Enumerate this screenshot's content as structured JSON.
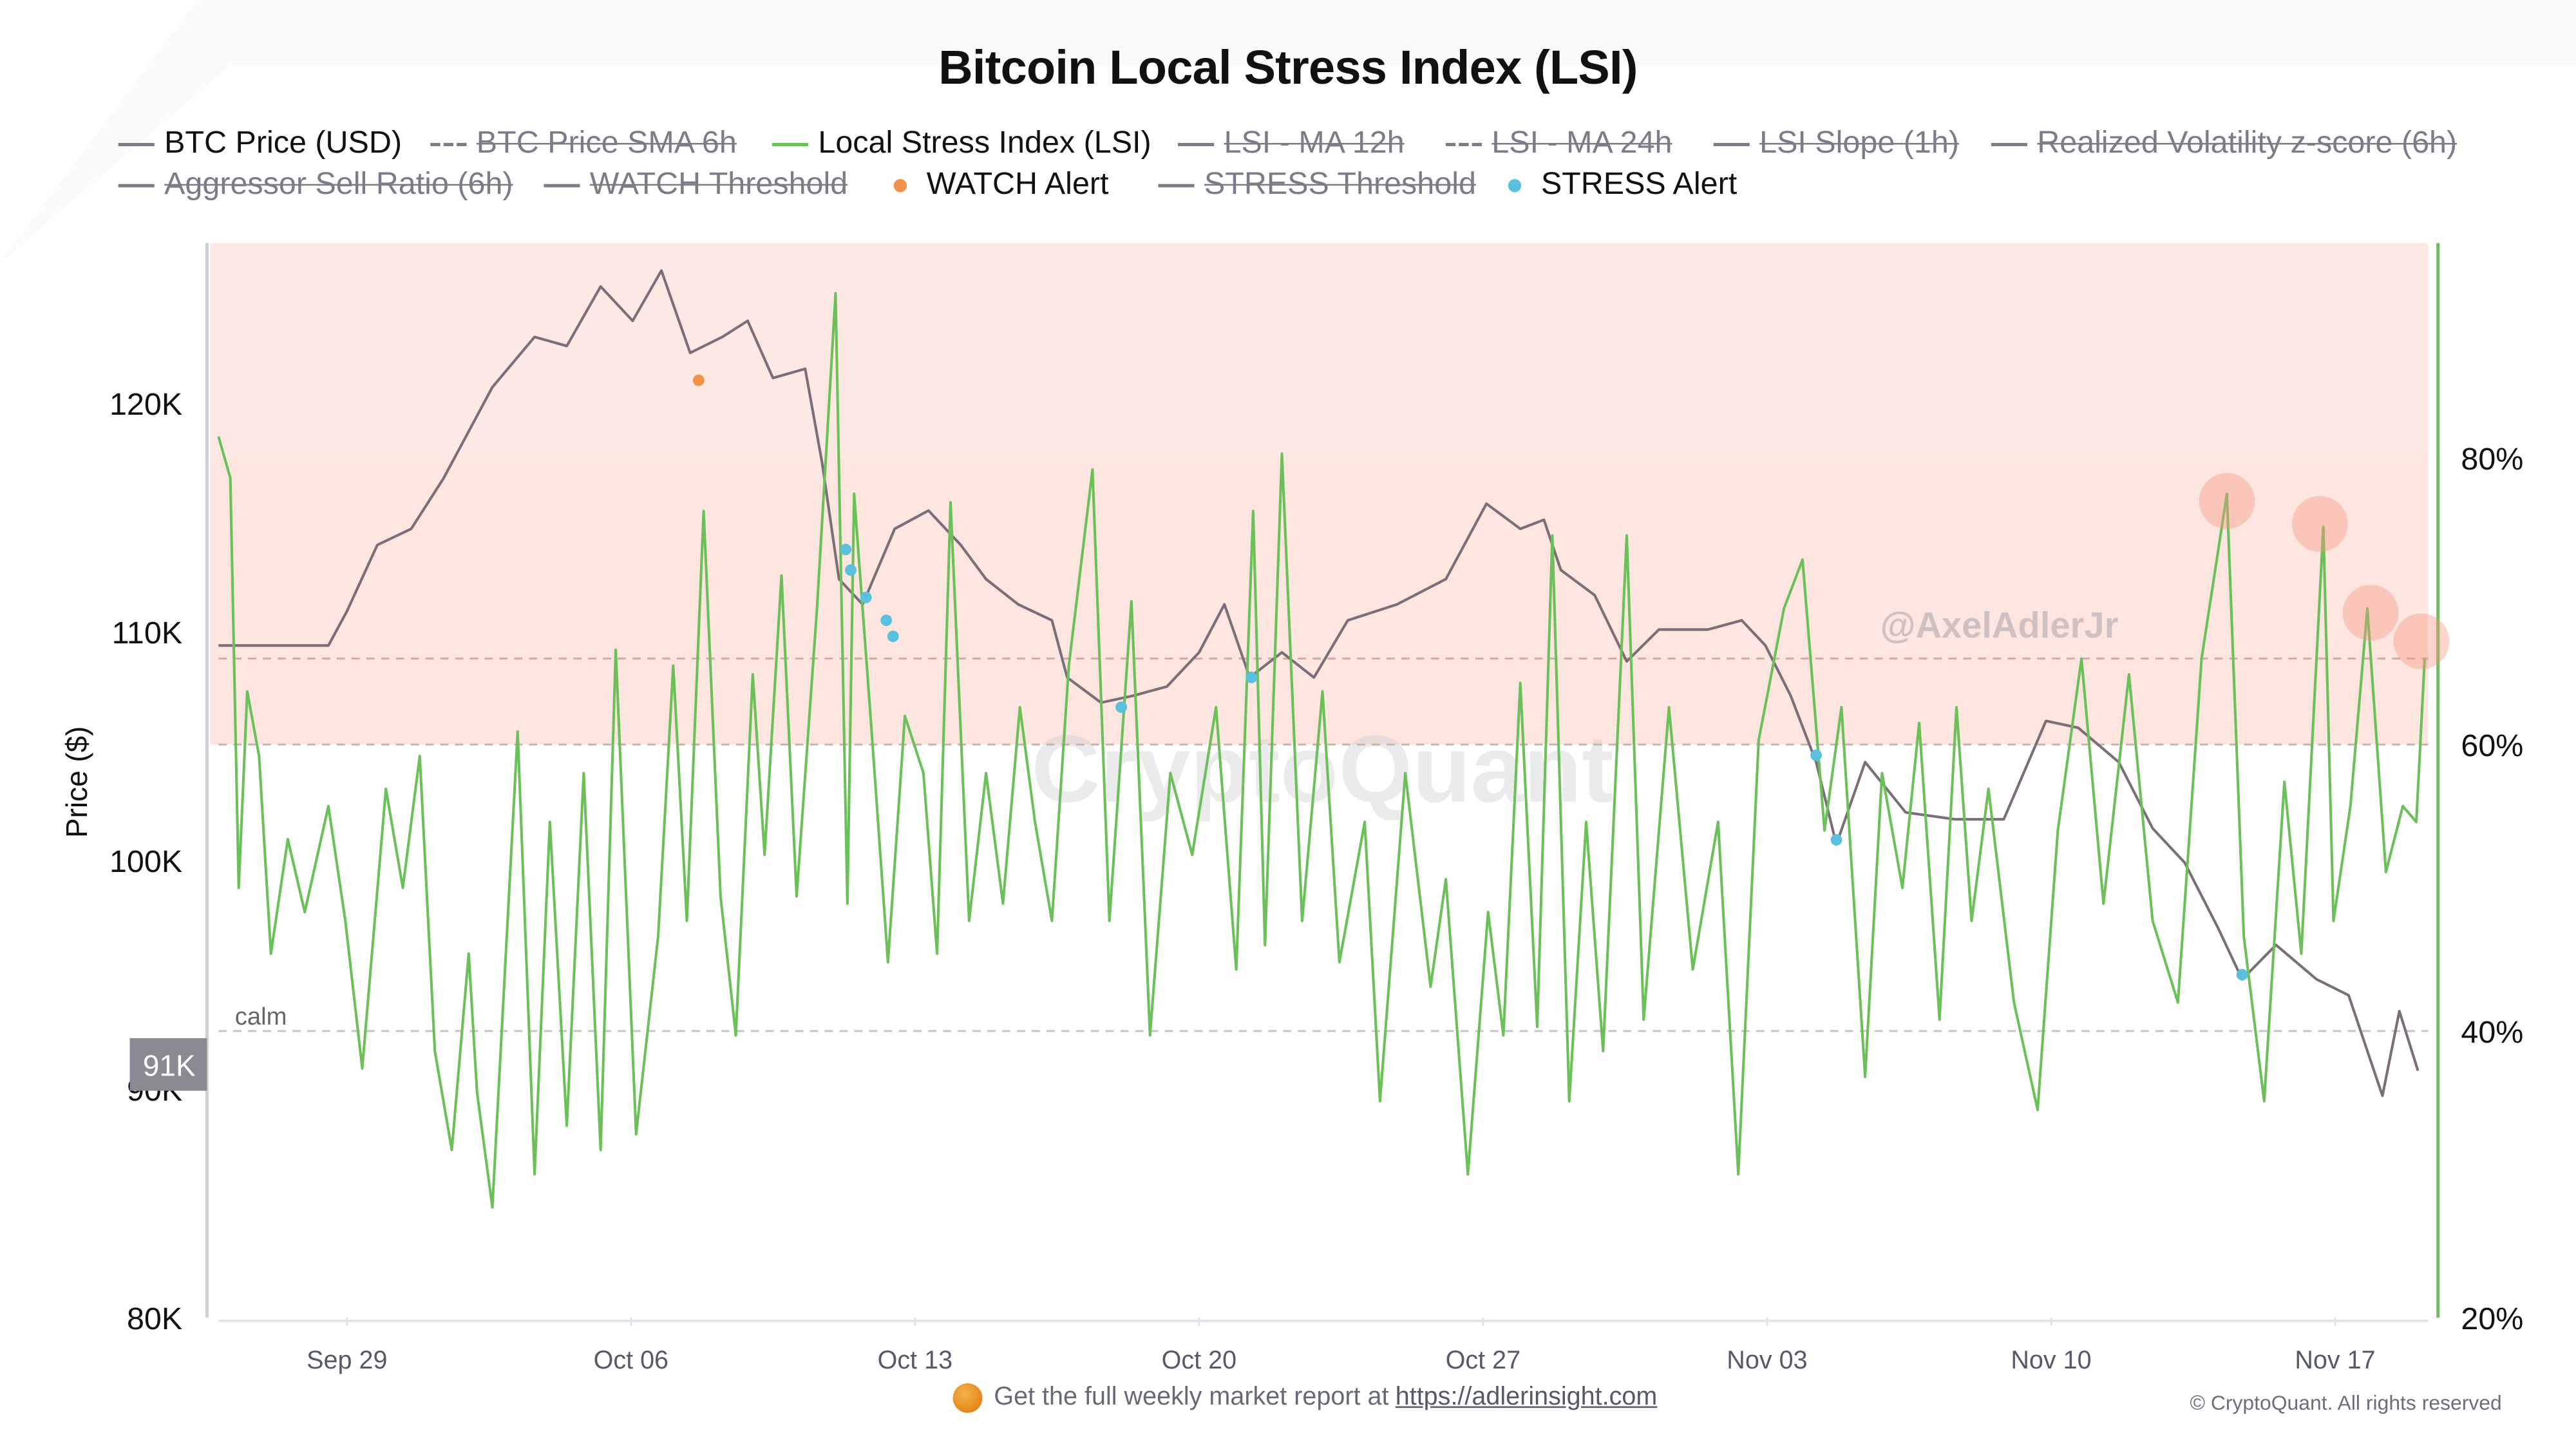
{
  "title": "Bitcoin Local Stress Index (LSI)",
  "legend": [
    {
      "label": "BTC Price (USD)",
      "style": "solid",
      "color": "#7c7c86",
      "active": true
    },
    {
      "label": "BTC Price SMA 6h",
      "style": "dashed",
      "color": "#7c7c86",
      "active": false
    },
    {
      "label": "Local Stress Index (LSI)",
      "style": "solid",
      "color": "#6cc05a",
      "active": true
    },
    {
      "label": "LSI - MA 12h",
      "style": "solid",
      "color": "#7c7c86",
      "active": false
    },
    {
      "label": "LSI - MA 24h",
      "style": "dashed",
      "color": "#7c7c86",
      "active": false
    },
    {
      "label": "LSI Slope (1h)",
      "style": "solid",
      "color": "#7c7c86",
      "active": false
    },
    {
      "label": "Realized Volatility z-score (6h)",
      "style": "solid",
      "color": "#7c7c86",
      "active": false
    },
    {
      "label": "Aggressor Sell Ratio (6h)",
      "style": "solid",
      "color": "#7c7c86",
      "active": false
    },
    {
      "label": "WATCH Threshold",
      "style": "solid",
      "color": "#7c7c86",
      "active": false
    },
    {
      "label": "WATCH Alert",
      "style": "dot",
      "color": "#f0924a",
      "active": true
    },
    {
      "label": "STRESS Threshold",
      "style": "solid",
      "color": "#7c7c86",
      "active": false
    },
    {
      "label": "STRESS Alert",
      "style": "dot",
      "color": "#5bc0de",
      "active": true
    }
  ],
  "watermarks": {
    "brand": "CryptoQuant",
    "author": "@AxelAdlerJr"
  },
  "footer": {
    "text": "Get the full weekly market report at",
    "link": "https://adlerinsight.com",
    "copyright": "© CryptoQuant. All rights reserved"
  },
  "chart_data": {
    "type": "line",
    "xlabel": "",
    "x_ticks": [
      "Sep 29",
      "Oct 06",
      "Oct 13",
      "Oct 20",
      "Oct 27",
      "Nov 03",
      "Nov 10",
      "Nov 17"
    ],
    "x_tick_dates": [
      "09-29 00:00",
      "10-06 00:00",
      "10-13 00:00",
      "10-20 00:00",
      "10-27 00:00",
      "11-03 00:00",
      "11-10 00:00",
      "11-17 00:00"
    ],
    "x_range": [
      "09-25 20:00",
      "11-19 07:00"
    ],
    "left_axis": {
      "label": "Price ($)",
      "range": [
        80000,
        127000
      ],
      "ticks": [
        80000,
        90000,
        100000,
        110000,
        120000
      ],
      "tick_labels": [
        "80K",
        "90K",
        "100K",
        "110K",
        "120K"
      ]
    },
    "right_axis": {
      "range": [
        20,
        95
      ],
      "ticks": [
        20,
        40,
        60,
        80
      ],
      "tick_labels": [
        "20%",
        "40%",
        "60%",
        "80%"
      ]
    },
    "current_price_label": "91K",
    "current_price": 91000,
    "zones": [
      {
        "from": 60,
        "to": 95,
        "axis": "right",
        "color": "#fde6df"
      }
    ],
    "thresholds": [
      {
        "value": 66,
        "axis": "right",
        "style": "dashed",
        "color": "#d6a9a6"
      },
      {
        "value": 60,
        "axis": "right",
        "style": "dashed",
        "color": "#c9b2b2"
      },
      {
        "value": 40,
        "axis": "right",
        "style": "dashed",
        "color": "#c4c4c8",
        "label": "calm"
      }
    ],
    "series": [
      {
        "name": "BTC Price (USD)",
        "axis": "left",
        "color": "#7a6e78",
        "points": [
          [
            "09-25 20:00",
            109400
          ],
          [
            "09-28 13:00",
            109400
          ],
          [
            "09-29 00:00",
            110900
          ],
          [
            "09-29 18:00",
            113800
          ],
          [
            "09-30 14:00",
            114500
          ],
          [
            "10-01 09:00",
            116700
          ],
          [
            "10-02 14:00",
            120700
          ],
          [
            "10-03 15:00",
            122900
          ],
          [
            "10-04 10:00",
            122500
          ],
          [
            "10-05 06:00",
            125100
          ],
          [
            "10-06 01:00",
            123600
          ],
          [
            "10-06 18:00",
            125800
          ],
          [
            "10-07 11:00",
            122200
          ],
          [
            "10-08 06:00",
            122900
          ],
          [
            "10-08 21:00",
            123600
          ],
          [
            "10-09 12:00",
            121100
          ],
          [
            "10-10 07:00",
            121500
          ],
          [
            "10-10 17:00",
            117400
          ],
          [
            "10-11 03:00",
            112300
          ],
          [
            "10-11 17:00",
            111200
          ],
          [
            "10-12 12:00",
            114500
          ],
          [
            "10-13 08:00",
            115300
          ],
          [
            "10-14 03:00",
            113800
          ],
          [
            "10-14 18:00",
            112300
          ],
          [
            "10-15 13:00",
            111200
          ],
          [
            "10-16 09:00",
            110500
          ],
          [
            "10-16 18:00",
            108000
          ],
          [
            "10-17 14:00",
            106900
          ],
          [
            "10-18 09:00",
            107200
          ],
          [
            "10-19 05:00",
            107600
          ],
          [
            "10-20 00:00",
            109100
          ],
          [
            "10-20 15:00",
            111200
          ],
          [
            "10-21 06:00",
            108000
          ],
          [
            "10-22 01:00",
            109100
          ],
          [
            "10-22 20:00",
            108000
          ],
          [
            "10-23 16:00",
            110500
          ],
          [
            "10-24 21:00",
            111200
          ],
          [
            "10-26 02:00",
            112300
          ],
          [
            "10-27 02:00",
            115600
          ],
          [
            "10-27 22:00",
            114500
          ],
          [
            "10-28 12:00",
            114900
          ],
          [
            "10-28 22:00",
            112700
          ],
          [
            "10-29 18:00",
            111600
          ],
          [
            "10-30 13:00",
            108700
          ],
          [
            "10-31 08:00",
            110100
          ],
          [
            "11-01 13:00",
            110100
          ],
          [
            "11-02 09:00",
            110500
          ],
          [
            "11-02 23:00",
            109400
          ],
          [
            "11-03 14:00",
            107200
          ],
          [
            "11-04 05:00",
            104300
          ],
          [
            "11-04 17:00",
            100700
          ],
          [
            "11-05 10:00",
            104300
          ],
          [
            "11-06 10:00",
            102100
          ],
          [
            "11-07 15:00",
            101800
          ],
          [
            "11-08 20:00",
            101800
          ],
          [
            "11-09 21:00",
            106100
          ],
          [
            "11-10 16:00",
            105800
          ],
          [
            "11-11 16:00",
            104300
          ],
          [
            "11-12 12:00",
            101400
          ],
          [
            "11-13 07:00",
            99900
          ],
          [
            "11-14 03:00",
            97000
          ],
          [
            "11-14 17:00",
            94800
          ],
          [
            "11-15 13:00",
            96300
          ],
          [
            "11-16 13:00",
            94800
          ],
          [
            "11-17 08:00",
            94100
          ],
          [
            "11-18 04:00",
            89700
          ],
          [
            "11-18 14:00",
            93400
          ],
          [
            "11-19 01:00",
            90800
          ]
        ]
      },
      {
        "name": "Local Stress Index (LSI)",
        "axis": "right",
        "color": "#6cc05a",
        "points": [
          [
            "09-25 20:00",
            81.5
          ],
          [
            "09-26 03:00",
            78.6
          ],
          [
            "09-26 08:00",
            50.0
          ],
          [
            "09-26 13:00",
            63.7
          ],
          [
            "09-26 20:00",
            59.2
          ],
          [
            "09-27 03:00",
            45.4
          ],
          [
            "09-27 13:00",
            53.4
          ],
          [
            "09-27 23:00",
            48.3
          ],
          [
            "09-28 13:00",
            55.7
          ],
          [
            "09-28 23:00",
            47.7
          ],
          [
            "09-29 09:00",
            37.4
          ],
          [
            "09-29 23:00",
            56.9
          ],
          [
            "09-30 09:00",
            50.0
          ],
          [
            "09-30 19:00",
            59.2
          ],
          [
            "10-01 04:00",
            38.6
          ],
          [
            "10-01 14:00",
            31.7
          ],
          [
            "10-02 00:00",
            45.4
          ],
          [
            "10-02 05:00",
            35.7
          ],
          [
            "10-02 14:00",
            27.7
          ],
          [
            "10-03 05:00",
            60.9
          ],
          [
            "10-03 15:00",
            30.0
          ],
          [
            "10-04 00:00",
            54.6
          ],
          [
            "10-04 10:00",
            33.4
          ],
          [
            "10-04 20:00",
            58.0
          ],
          [
            "10-05 06:00",
            31.7
          ],
          [
            "10-05 15:00",
            66.6
          ],
          [
            "10-06 03:00",
            32.8
          ],
          [
            "10-06 16:00",
            46.6
          ],
          [
            "10-07 01:00",
            65.5
          ],
          [
            "10-07 09:00",
            47.7
          ],
          [
            "10-07 19:00",
            76.3
          ],
          [
            "10-08 05:00",
            49.4
          ],
          [
            "10-08 14:00",
            39.7
          ],
          [
            "10-09 00:00",
            64.9
          ],
          [
            "10-09 07:00",
            52.3
          ],
          [
            "10-09 17:00",
            71.8
          ],
          [
            "10-10 02:00",
            49.4
          ],
          [
            "10-10 14:00",
            69.5
          ],
          [
            "10-11 01:00",
            91.5
          ],
          [
            "10-11 08:00",
            48.9
          ],
          [
            "10-11 12:00",
            77.5
          ],
          [
            "10-11 22:00",
            61.5
          ],
          [
            "10-12 08:00",
            44.8
          ],
          [
            "10-12 18:00",
            62.0
          ],
          [
            "10-13 05:00",
            58.0
          ],
          [
            "10-13 13:00",
            45.4
          ],
          [
            "10-13 21:00",
            76.9
          ],
          [
            "10-14 08:00",
            47.7
          ],
          [
            "10-14 18:00",
            58.0
          ],
          [
            "10-15 04:00",
            48.9
          ],
          [
            "10-15 14:00",
            62.6
          ],
          [
            "10-15 23:00",
            54.6
          ],
          [
            "10-16 09:00",
            47.7
          ],
          [
            "10-16 19:00",
            65.5
          ],
          [
            "10-17 09:00",
            79.2
          ],
          [
            "10-17 19:00",
            47.7
          ],
          [
            "10-18 08:00",
            70.0
          ],
          [
            "10-18 19:00",
            39.7
          ],
          [
            "10-19 07:00",
            58.0
          ],
          [
            "10-19 20:00",
            52.3
          ],
          [
            "10-20 10:00",
            62.6
          ],
          [
            "10-20 22:00",
            44.3
          ],
          [
            "10-21 08:00",
            76.3
          ],
          [
            "10-21 15:00",
            46.0
          ],
          [
            "10-22 01:00",
            80.3
          ],
          [
            "10-22 13:00",
            47.7
          ],
          [
            "10-23 01:00",
            63.7
          ],
          [
            "10-23 11:00",
            44.8
          ],
          [
            "10-24 02:00",
            54.6
          ],
          [
            "10-24 11:00",
            35.1
          ],
          [
            "10-25 02:00",
            58.0
          ],
          [
            "10-25 17:00",
            43.1
          ],
          [
            "10-26 02:00",
            50.6
          ],
          [
            "10-26 15:00",
            30.0
          ],
          [
            "10-27 03:00",
            48.3
          ],
          [
            "10-27 12:00",
            39.7
          ],
          [
            "10-27 22:00",
            64.3
          ],
          [
            "10-28 08:00",
            40.3
          ],
          [
            "10-28 17:00",
            74.6
          ],
          [
            "10-29 03:00",
            35.1
          ],
          [
            "10-29 13:00",
            54.6
          ],
          [
            "10-29 23:00",
            38.6
          ],
          [
            "10-30 13:00",
            74.6
          ],
          [
            "10-30 23:00",
            40.8
          ],
          [
            "10-31 14:00",
            62.6
          ],
          [
            "11-01 04:00",
            44.3
          ],
          [
            "11-01 19:00",
            54.6
          ],
          [
            "11-02 07:00",
            30.0
          ],
          [
            "11-02 19:00",
            60.3
          ],
          [
            "11-03 10:00",
            69.5
          ],
          [
            "11-03 21:00",
            72.9
          ],
          [
            "11-04 10:00",
            54.0
          ],
          [
            "11-04 20:00",
            62.6
          ],
          [
            "11-05 10:00",
            36.8
          ],
          [
            "11-05 20:00",
            58.0
          ],
          [
            "11-06 08:00",
            50.0
          ],
          [
            "11-06 18:00",
            61.5
          ],
          [
            "11-07 06:00",
            40.8
          ],
          [
            "11-07 16:00",
            62.6
          ],
          [
            "11-08 01:00",
            47.7
          ],
          [
            "11-08 11:00",
            56.9
          ],
          [
            "11-09 02:00",
            42.0
          ],
          [
            "11-09 16:00",
            34.5
          ],
          [
            "11-10 04:00",
            54.0
          ],
          [
            "11-10 18:00",
            66.0
          ],
          [
            "11-11 07:00",
            48.9
          ],
          [
            "11-11 22:00",
            64.9
          ],
          [
            "11-12 12:00",
            47.7
          ],
          [
            "11-13 03:00",
            42.0
          ],
          [
            "11-13 17:00",
            66.0
          ],
          [
            "11-14 08:00",
            77.5
          ],
          [
            "11-14 18:00",
            46.6
          ],
          [
            "11-15 06:00",
            35.1
          ],
          [
            "11-15 18:00",
            57.4
          ],
          [
            "11-16 04:00",
            45.4
          ],
          [
            "11-16 17:00",
            75.2
          ],
          [
            "11-16 23:00",
            47.7
          ],
          [
            "11-17 09:00",
            55.7
          ],
          [
            "11-17 19:00",
            69.5
          ],
          [
            "11-18 06:00",
            51.1
          ],
          [
            "11-18 16:00",
            55.7
          ],
          [
            "11-19 00:00",
            54.6
          ],
          [
            "11-19 05:00",
            66.0
          ]
        ]
      }
    ],
    "watch_alerts": {
      "axis": "left",
      "color": "#f0924a",
      "points": [
        [
          "10-07 16:00",
          121000
        ]
      ]
    },
    "stress_alerts": {
      "axis": "left",
      "color": "#5bc0de",
      "points": [
        [
          "10-11 07:00",
          113600
        ],
        [
          "10-11 10:00",
          112700
        ],
        [
          "10-11 19:00",
          111500
        ],
        [
          "10-12 07:00",
          110500
        ],
        [
          "10-12 11:00",
          109800
        ],
        [
          "10-18 02:00",
          106700
        ],
        [
          "10-21 07:00",
          108000
        ],
        [
          "11-04 05:00",
          104600
        ],
        [
          "11-04 17:00",
          100900
        ],
        [
          "11-14 17:00",
          95000
        ]
      ]
    },
    "highlight_markers": {
      "axis": "right",
      "color": "#f5967f",
      "points": [
        [
          "11-14 08:00",
          77.0
        ],
        [
          "11-16 15:00",
          75.4
        ],
        [
          "11-17 21:00",
          69.2
        ],
        [
          "11-19 03:00",
          67.2
        ]
      ]
    }
  }
}
